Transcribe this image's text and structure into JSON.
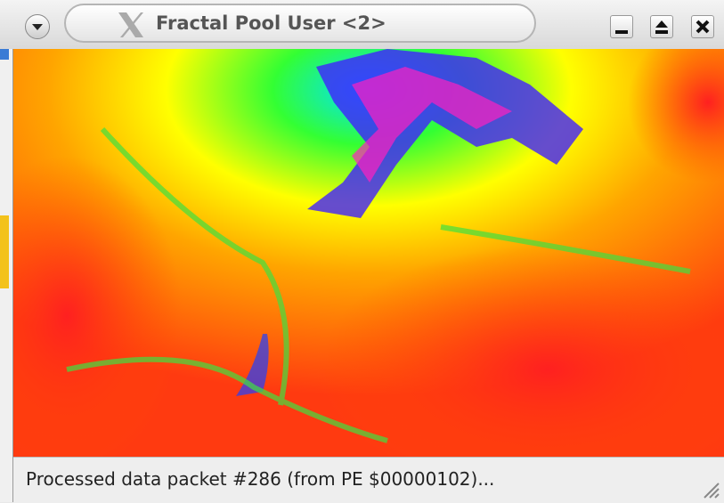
{
  "window": {
    "title": "Fractal Pool User <2>",
    "status": "Processed data packet #286 (from PE $00000102)..."
  }
}
